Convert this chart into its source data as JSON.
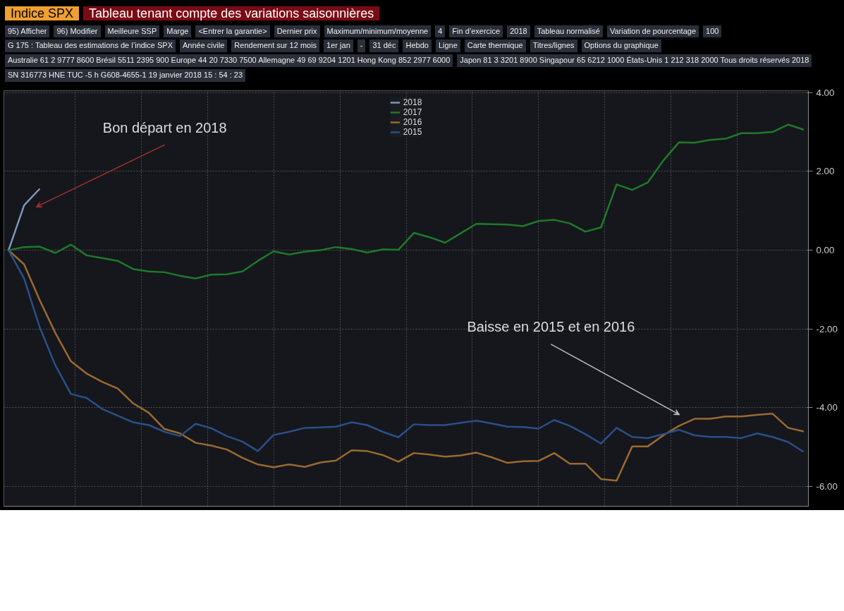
{
  "chart_data": {
    "type": "line",
    "title": "Indice SPX",
    "subtitle": "Tableau tenant compte des variations saisonnières",
    "annotations": [
      "Bon départ en 2018",
      "Baisse en 2015 et en 2016",
      "95) Afficher",
      "96) Modifier",
      "Meilleure SSP",
      "Marge",
      "<Entrer la garantie>",
      "Dernier prix",
      "Maximum/minimum/moyenne",
      "4",
      "Fin d’exercice",
      "2018",
      "Tableau normalisé",
      "Variation de pourcentage",
      "100",
      "G 175 : Tableau des estimations de l’indice SPX",
      "Année civile",
      "Rendement sur 12 mois",
      "1er jan",
      "-",
      "31 déc",
      "Hebdo",
      "Ligne",
      "Carte thermique",
      "Titres/lignes",
      "Options du graphique",
      "Australie 61 2 9777 8600 Brésil 5511 2395 900 Europe 44 20 7330 7500 Allemagne 49 69 9204 1201 Hong Kong 852 2977 6000",
      "Japon 81 3 3201 8900 Singapour 65 6212 1000 États-Unis 1 212 318 2000 Tous droits réservés 2018",
      "SN 316773 HNE TUC -5 h G608-4655-1 19 janvier 2018 15 : 54 : 23"
    ],
    "categories": [
      null,
      null,
      null,
      null,
      null,
      null,
      null,
      null,
      null,
      null,
      null,
      null,
      null,
      null,
      null,
      null,
      null,
      null,
      null,
      null,
      null,
      null,
      null,
      null,
      null,
      null,
      null,
      null,
      null,
      null,
      null,
      null,
      null,
      null,
      null,
      null,
      null,
      null,
      null,
      null,
      null,
      null,
      null,
      null,
      null,
      null,
      null,
      null,
      null,
      null,
      null,
      null
    ],
    "ylim": [
      -6.5,
      4.05
    ],
    "yticks": [
      {
        "value": 4,
        "label": "4.00"
      },
      {
        "value": 2,
        "label": "2.00"
      },
      {
        "value": 0,
        "label": "0.00"
      },
      {
        "value": -2,
        "label": "-2.00"
      },
      {
        "value": -4,
        "label": "-4.00"
      },
      {
        "value": -6,
        "label": "-6.00"
      }
    ],
    "tick_labels": "y",
    "grid": true,
    "legend": "top",
    "line_style": "solid",
    "series": [
      {
        "name": "2018",
        "color": "#7f96b8",
        "values": [
          0,
          1.14,
          1.56,
          null,
          null,
          null,
          null,
          null,
          null,
          null,
          null,
          null,
          null,
          null,
          null,
          null,
          null,
          null,
          null,
          null,
          null,
          null,
          null,
          null,
          null,
          null,
          null,
          null,
          null,
          null,
          null,
          null,
          null,
          null,
          null,
          null,
          null,
          null,
          null,
          null,
          null,
          null,
          null,
          null,
          null,
          null,
          null,
          null,
          null,
          null,
          null,
          null
        ]
      },
      {
        "name": "2017",
        "color": "#1e7a2a",
        "values": [
          0,
          0.08,
          0.09,
          -0.07,
          0.14,
          -0.13,
          -0.2,
          -0.27,
          -0.48,
          -0.54,
          -0.56,
          -0.65,
          -0.72,
          -0.62,
          -0.61,
          -0.54,
          -0.27,
          -0.03,
          -0.11,
          -0.04,
          0,
          0.08,
          0.03,
          -0.06,
          0.02,
          0.01,
          0.44,
          0.33,
          0.19,
          0.43,
          0.67,
          0.66,
          0.65,
          0.61,
          0.74,
          0.77,
          0.68,
          0.47,
          0.58,
          1.67,
          1.53,
          1.72,
          2.28,
          2.74,
          2.73,
          2.8,
          2.83,
          2.97,
          2.97,
          3.0,
          3.19,
          3.06
        ]
      },
      {
        "name": "2016",
        "color": "#9a6a30",
        "values": [
          0,
          -0.36,
          -1.27,
          -2.1,
          -2.82,
          -3.13,
          -3.34,
          -3.51,
          -3.89,
          -4.13,
          -4.54,
          -4.65,
          -4.89,
          -4.96,
          -5.06,
          -5.27,
          -5.44,
          -5.51,
          -5.44,
          -5.5,
          -5.39,
          -5.34,
          -5.08,
          -5.1,
          -5.2,
          -5.37,
          -5.15,
          -5.19,
          -5.24,
          -5.21,
          -5.14,
          -5.26,
          -5.4,
          -5.36,
          -5.35,
          -5.15,
          -5.42,
          -5.42,
          -5.81,
          -5.85,
          -4.98,
          -4.98,
          -4.7,
          -4.46,
          -4.28,
          -4.28,
          -4.22,
          -4.22,
          -4.18,
          -4.15,
          -4.51,
          -4.6
        ]
      },
      {
        "name": "2015",
        "color": "#2a4f8a",
        "values": [
          0,
          -0.72,
          -1.96,
          -2.92,
          -3.65,
          -3.75,
          -4.03,
          -4.2,
          -4.37,
          -4.44,
          -4.61,
          -4.72,
          -4.41,
          -4.52,
          -4.72,
          -4.86,
          -5.1,
          -4.69,
          -4.61,
          -4.51,
          -4.5,
          -4.48,
          -4.37,
          -4.44,
          -4.61,
          -4.75,
          -4.42,
          -4.44,
          -4.44,
          -4.38,
          -4.33,
          -4.4,
          -4.48,
          -4.49,
          -4.53,
          -4.31,
          -4.46,
          -4.67,
          -4.91,
          -4.51,
          -4.74,
          -4.77,
          -4.67,
          -4.56,
          -4.7,
          -4.74,
          -4.74,
          -4.77,
          -4.65,
          -4.74,
          -4.87,
          -5.12
        ]
      }
    ]
  }
}
